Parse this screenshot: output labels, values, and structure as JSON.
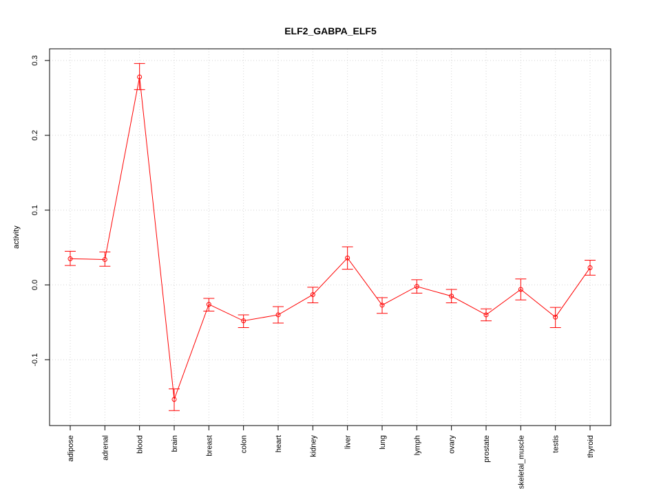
{
  "chart_data": {
    "type": "line",
    "title": "ELF2_GABPA_ELF5",
    "xlabel": "",
    "ylabel": "activity",
    "ylim": [
      -0.188,
      0.3
    ],
    "yticks": [
      -0.1,
      0.0,
      0.1,
      0.2,
      0.3
    ],
    "ytick_labels": [
      "-0.1",
      "0.0",
      "0.1",
      "0.2",
      "0.3"
    ],
    "grid": true,
    "categories": [
      "adipose",
      "adrenal",
      "blood",
      "brain",
      "breast",
      "colon",
      "heart",
      "kidney",
      "liver",
      "lung",
      "lymph",
      "ovary",
      "prostate",
      "skeletal_muscle",
      "testis",
      "thyroid"
    ],
    "values": [
      0.035,
      0.034,
      0.278,
      -0.153,
      -0.026,
      -0.048,
      -0.04,
      -0.013,
      0.036,
      -0.027,
      -0.002,
      -0.015,
      -0.04,
      -0.006,
      -0.043,
      0.023
    ],
    "error_upper": [
      0.045,
      0.044,
      0.296,
      -0.139,
      -0.018,
      -0.04,
      -0.029,
      -0.003,
      0.051,
      -0.017,
      0.007,
      -0.006,
      -0.032,
      0.008,
      -0.03,
      0.033
    ],
    "error_lower": [
      0.026,
      0.025,
      0.261,
      -0.168,
      -0.035,
      -0.057,
      -0.051,
      -0.024,
      0.021,
      -0.038,
      -0.011,
      -0.024,
      -0.048,
      -0.02,
      -0.057,
      0.013
    ],
    "series_color": "#ff0000",
    "grid_color": "#d3d3d3"
  }
}
